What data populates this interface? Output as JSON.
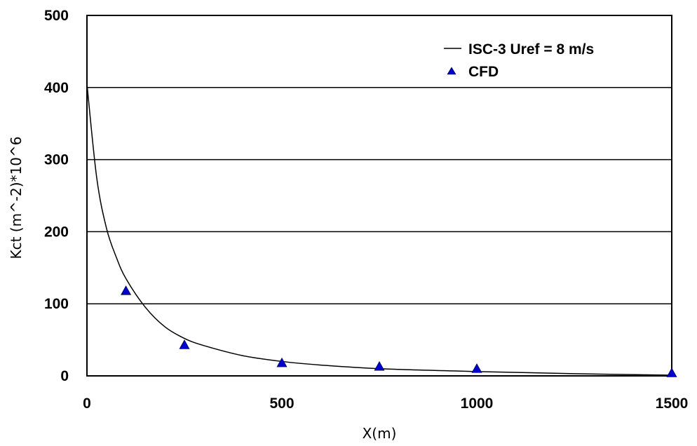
{
  "chart_data": {
    "type": "scatter",
    "title": "",
    "xlabel": "X(m)",
    "ylabel": "Kct (m^-2)*10^6",
    "xlim": [
      0,
      1500
    ],
    "ylim": [
      0,
      500
    ],
    "xticks": [
      "0",
      "500",
      "1000",
      "1500"
    ],
    "yticks": [
      "0",
      "100",
      "200",
      "300",
      "400",
      "500"
    ],
    "grid": "horizontal",
    "legend_position": "top-right",
    "series": [
      {
        "name": "ISC-3 Uref = 8 m/s",
        "kind": "line",
        "color": "#000000",
        "x": [
          0,
          25,
          50,
          75,
          100,
          150,
          200,
          250,
          300,
          400,
          500,
          600,
          750,
          1000,
          1250,
          1500
        ],
        "y": [
          405,
          275,
          205,
          165,
          135,
          95,
          68,
          52,
          42,
          28,
          20,
          15,
          10,
          6,
          3,
          1
        ]
      },
      {
        "name": "CFD",
        "kind": "scatter",
        "marker": "triangle",
        "color": "#0000cc",
        "x": [
          100,
          250,
          500,
          750,
          1000,
          1500
        ],
        "y": [
          118,
          43,
          18,
          13,
          10,
          4
        ]
      }
    ]
  }
}
